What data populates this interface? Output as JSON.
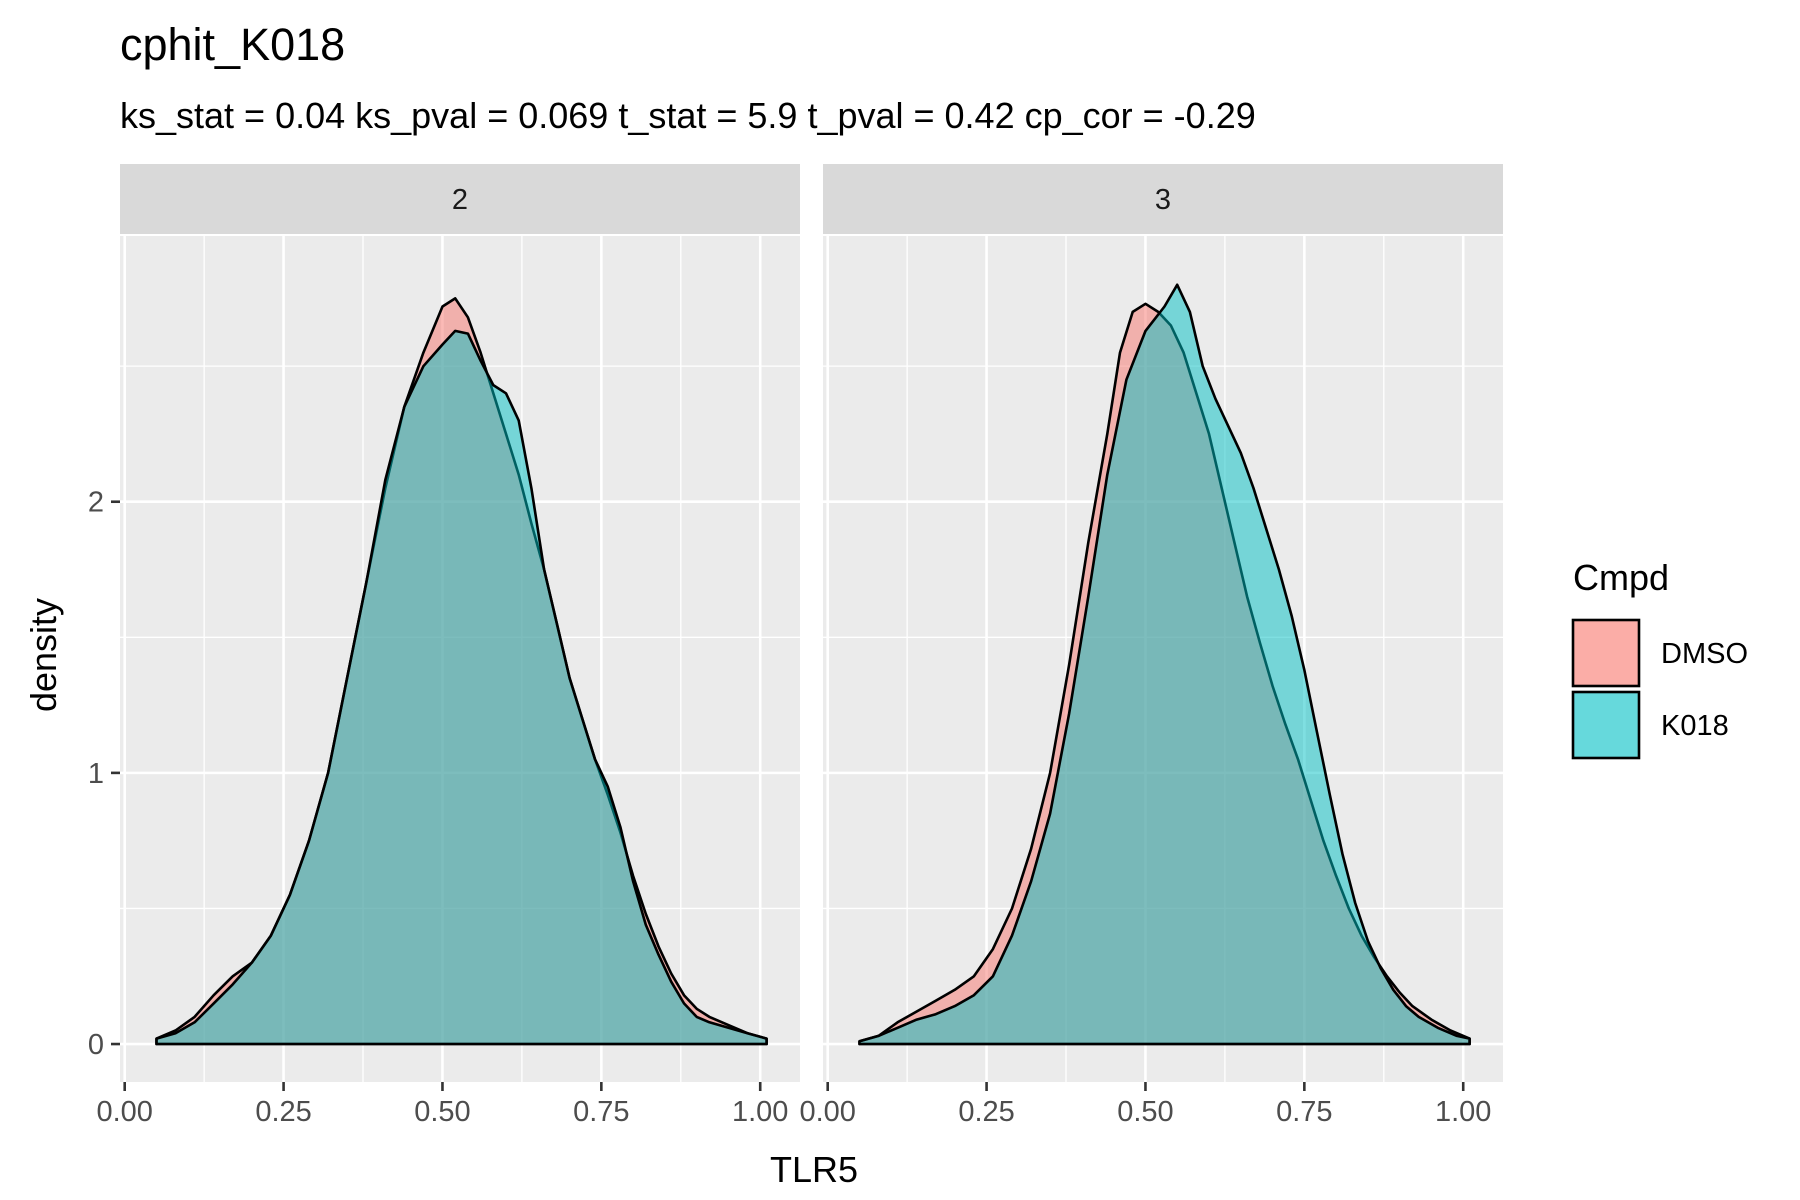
{
  "chart_data": {
    "type": "area",
    "subtype": "density",
    "title": "cphit_K018",
    "subtitle": "ks_stat = 0.04 ks_pval = 0.069 t_stat = 5.9 t_pval = 0.42 cp_cor = -0.29",
    "xlabel": "TLR5",
    "ylabel": "density",
    "xlim": [
      0.0,
      1.0
    ],
    "ylim": [
      0,
      3
    ],
    "x_ticks": [
      "0.00",
      "0.25",
      "0.50",
      "0.75",
      "1.00"
    ],
    "y_ticks": [
      "0",
      "1",
      "2"
    ],
    "grid": true,
    "legend": {
      "title": "Cmpd",
      "position": "right",
      "entries": [
        {
          "label": "DMSO",
          "color": "#F8766D"
        },
        {
          "label": "K018",
          "color": "#00BFC4"
        }
      ]
    },
    "facets": [
      {
        "label": "2",
        "series": [
          {
            "name": "DMSO",
            "color": "#F8766D",
            "points": [
              [
                0.05,
                0.02
              ],
              [
                0.08,
                0.05
              ],
              [
                0.11,
                0.1
              ],
              [
                0.14,
                0.18
              ],
              [
                0.17,
                0.25
              ],
              [
                0.2,
                0.3
              ],
              [
                0.23,
                0.4
              ],
              [
                0.26,
                0.55
              ],
              [
                0.29,
                0.75
              ],
              [
                0.32,
                1.0
              ],
              [
                0.35,
                1.35
              ],
              [
                0.38,
                1.7
              ],
              [
                0.41,
                2.05
              ],
              [
                0.44,
                2.35
              ],
              [
                0.47,
                2.55
              ],
              [
                0.5,
                2.72
              ],
              [
                0.52,
                2.75
              ],
              [
                0.54,
                2.68
              ],
              [
                0.56,
                2.55
              ],
              [
                0.58,
                2.4
              ],
              [
                0.6,
                2.25
              ],
              [
                0.62,
                2.1
              ],
              [
                0.64,
                1.92
              ],
              [
                0.66,
                1.75
              ],
              [
                0.68,
                1.55
              ],
              [
                0.7,
                1.35
              ],
              [
                0.72,
                1.2
              ],
              [
                0.74,
                1.05
              ],
              [
                0.76,
                0.92
              ],
              [
                0.78,
                0.78
              ],
              [
                0.8,
                0.62
              ],
              [
                0.82,
                0.48
              ],
              [
                0.84,
                0.36
              ],
              [
                0.86,
                0.26
              ],
              [
                0.88,
                0.18
              ],
              [
                0.9,
                0.13
              ],
              [
                0.92,
                0.1
              ],
              [
                0.95,
                0.07
              ],
              [
                0.98,
                0.04
              ],
              [
                1.01,
                0.02
              ]
            ]
          },
          {
            "name": "K018",
            "color": "#00BFC4",
            "points": [
              [
                0.05,
                0.02
              ],
              [
                0.08,
                0.04
              ],
              [
                0.11,
                0.08
              ],
              [
                0.14,
                0.15
              ],
              [
                0.17,
                0.22
              ],
              [
                0.2,
                0.3
              ],
              [
                0.23,
                0.4
              ],
              [
                0.26,
                0.55
              ],
              [
                0.29,
                0.75
              ],
              [
                0.32,
                1.0
              ],
              [
                0.35,
                1.35
              ],
              [
                0.38,
                1.7
              ],
              [
                0.41,
                2.08
              ],
              [
                0.44,
                2.35
              ],
              [
                0.47,
                2.5
              ],
              [
                0.5,
                2.58
              ],
              [
                0.52,
                2.63
              ],
              [
                0.54,
                2.62
              ],
              [
                0.56,
                2.52
              ],
              [
                0.58,
                2.43
              ],
              [
                0.6,
                2.4
              ],
              [
                0.62,
                2.3
              ],
              [
                0.64,
                2.05
              ],
              [
                0.66,
                1.75
              ],
              [
                0.68,
                1.55
              ],
              [
                0.7,
                1.35
              ],
              [
                0.72,
                1.2
              ],
              [
                0.74,
                1.05
              ],
              [
                0.76,
                0.95
              ],
              [
                0.78,
                0.8
              ],
              [
                0.8,
                0.6
              ],
              [
                0.82,
                0.44
              ],
              [
                0.84,
                0.33
              ],
              [
                0.86,
                0.23
              ],
              [
                0.88,
                0.15
              ],
              [
                0.9,
                0.1
              ],
              [
                0.92,
                0.08
              ],
              [
                0.95,
                0.06
              ],
              [
                0.98,
                0.04
              ],
              [
                1.01,
                0.02
              ]
            ]
          }
        ]
      },
      {
        "label": "3",
        "series": [
          {
            "name": "DMSO",
            "color": "#F8766D",
            "points": [
              [
                0.05,
                0.01
              ],
              [
                0.08,
                0.03
              ],
              [
                0.11,
                0.08
              ],
              [
                0.14,
                0.12
              ],
              [
                0.17,
                0.16
              ],
              [
                0.2,
                0.2
              ],
              [
                0.23,
                0.25
              ],
              [
                0.26,
                0.35
              ],
              [
                0.29,
                0.5
              ],
              [
                0.32,
                0.72
              ],
              [
                0.35,
                1.0
              ],
              [
                0.38,
                1.4
              ],
              [
                0.41,
                1.85
              ],
              [
                0.44,
                2.25
              ],
              [
                0.46,
                2.55
              ],
              [
                0.48,
                2.7
              ],
              [
                0.5,
                2.73
              ],
              [
                0.52,
                2.7
              ],
              [
                0.54,
                2.65
              ],
              [
                0.56,
                2.55
              ],
              [
                0.58,
                2.4
              ],
              [
                0.6,
                2.25
              ],
              [
                0.62,
                2.05
              ],
              [
                0.64,
                1.85
              ],
              [
                0.66,
                1.65
              ],
              [
                0.68,
                1.48
              ],
              [
                0.7,
                1.32
              ],
              [
                0.72,
                1.18
              ],
              [
                0.74,
                1.05
              ],
              [
                0.76,
                0.9
              ],
              [
                0.78,
                0.75
              ],
              [
                0.8,
                0.62
              ],
              [
                0.82,
                0.5
              ],
              [
                0.84,
                0.4
              ],
              [
                0.86,
                0.32
              ],
              [
                0.88,
                0.25
              ],
              [
                0.9,
                0.19
              ],
              [
                0.92,
                0.14
              ],
              [
                0.95,
                0.09
              ],
              [
                0.98,
                0.05
              ],
              [
                1.01,
                0.02
              ]
            ]
          },
          {
            "name": "K018",
            "color": "#00BFC4",
            "points": [
              [
                0.05,
                0.01
              ],
              [
                0.08,
                0.03
              ],
              [
                0.11,
                0.06
              ],
              [
                0.14,
                0.09
              ],
              [
                0.17,
                0.11
              ],
              [
                0.2,
                0.14
              ],
              [
                0.23,
                0.18
              ],
              [
                0.26,
                0.25
              ],
              [
                0.29,
                0.4
              ],
              [
                0.32,
                0.6
              ],
              [
                0.35,
                0.85
              ],
              [
                0.38,
                1.22
              ],
              [
                0.41,
                1.65
              ],
              [
                0.44,
                2.1
              ],
              [
                0.47,
                2.45
              ],
              [
                0.5,
                2.63
              ],
              [
                0.53,
                2.72
              ],
              [
                0.55,
                2.8
              ],
              [
                0.57,
                2.7
              ],
              [
                0.59,
                2.5
              ],
              [
                0.61,
                2.38
              ],
              [
                0.63,
                2.28
              ],
              [
                0.65,
                2.18
              ],
              [
                0.67,
                2.05
              ],
              [
                0.69,
                1.9
              ],
              [
                0.71,
                1.75
              ],
              [
                0.73,
                1.58
              ],
              [
                0.75,
                1.38
              ],
              [
                0.77,
                1.15
              ],
              [
                0.79,
                0.92
              ],
              [
                0.81,
                0.7
              ],
              [
                0.83,
                0.52
              ],
              [
                0.85,
                0.38
              ],
              [
                0.87,
                0.28
              ],
              [
                0.89,
                0.2
              ],
              [
                0.91,
                0.14
              ],
              [
                0.93,
                0.1
              ],
              [
                0.96,
                0.06
              ],
              [
                0.99,
                0.03
              ],
              [
                1.01,
                0.02
              ]
            ]
          }
        ]
      }
    ]
  }
}
